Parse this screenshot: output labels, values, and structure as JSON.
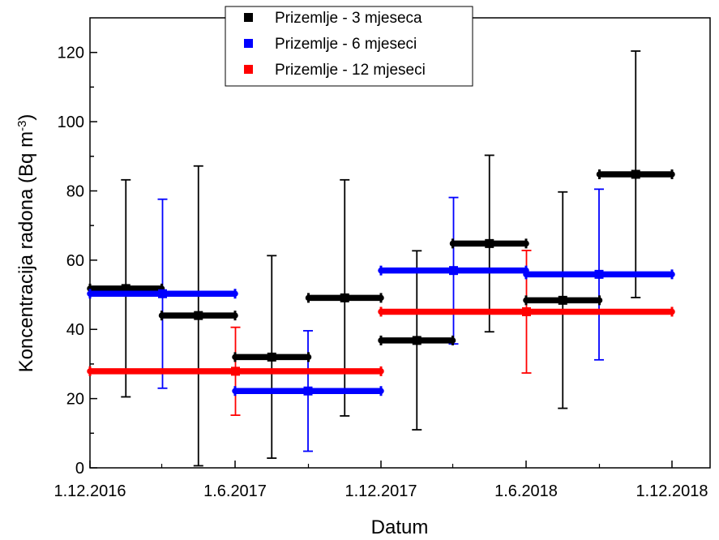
{
  "chart_data": {
    "type": "scatter",
    "xlabel": "Datum",
    "ylabel": "Koncentracija radona (Bq m",
    "ylabel_sup": "-3",
    "ylabel_close": ")",
    "x_tick_labels": [
      "1.12.2016",
      "1.6.2017",
      "1.12.2017",
      "1.6.2018",
      "1.12.2018"
    ],
    "y_tick_labels": [
      "0",
      "20",
      "40",
      "60",
      "80",
      "100",
      "120"
    ],
    "xlim": [
      "2016-12-01",
      "2018-12-31"
    ],
    "ylim": [
      0,
      130
    ],
    "grid": false,
    "legend_position": "top-center",
    "series": [
      {
        "name": "Prizemlje - 3 mjeseca",
        "color": "#000000",
        "points": [
          {
            "start": "2016-12-01",
            "end": "2017-03-01",
            "y": 51.8,
            "y_low": 20.5,
            "y_high": 83.2
          },
          {
            "start": "2017-03-01",
            "end": "2017-06-01",
            "y": 44.0,
            "y_low": 0.6,
            "y_high": 87.2
          },
          {
            "start": "2017-06-01",
            "end": "2017-09-01",
            "y": 32.0,
            "y_low": 2.8,
            "y_high": 61.3
          },
          {
            "start": "2017-09-01",
            "end": "2017-12-01",
            "y": 49.1,
            "y_low": 15.0,
            "y_high": 83.2
          },
          {
            "start": "2017-12-01",
            "end": "2018-03-01",
            "y": 36.8,
            "y_low": 11.0,
            "y_high": 62.7
          },
          {
            "start": "2018-03-01",
            "end": "2018-06-01",
            "y": 64.8,
            "y_low": 39.3,
            "y_high": 90.3
          },
          {
            "start": "2018-06-01",
            "end": "2018-09-01",
            "y": 48.4,
            "y_low": 17.2,
            "y_high": 79.7
          },
          {
            "start": "2018-09-01",
            "end": "2018-12-01",
            "y": 84.8,
            "y_low": 49.2,
            "y_high": 120.4
          }
        ]
      },
      {
        "name": "Prizemlje - 6 mjeseci",
        "color": "#0000ff",
        "points": [
          {
            "start": "2016-12-01",
            "end": "2017-06-01",
            "y": 50.3,
            "y_low": 23.0,
            "y_high": 77.6
          },
          {
            "start": "2017-06-01",
            "end": "2017-12-01",
            "y": 22.2,
            "y_low": 4.8,
            "y_high": 39.6
          },
          {
            "start": "2017-12-01",
            "end": "2018-06-01",
            "y": 57.0,
            "y_low": 35.8,
            "y_high": 78.1
          },
          {
            "start": "2018-06-01",
            "end": "2018-12-01",
            "y": 55.9,
            "y_low": 31.2,
            "y_high": 80.5
          }
        ]
      },
      {
        "name": "Prizemlje - 12 mjeseci",
        "color": "#ff0000",
        "points": [
          {
            "start": "2016-12-01",
            "end": "2017-12-01",
            "y": 27.9,
            "y_low": 15.2,
            "y_high": 40.6
          },
          {
            "start": "2017-12-01",
            "end": "2018-12-01",
            "y": 45.1,
            "y_low": 27.4,
            "y_high": 62.8
          }
        ]
      }
    ]
  }
}
